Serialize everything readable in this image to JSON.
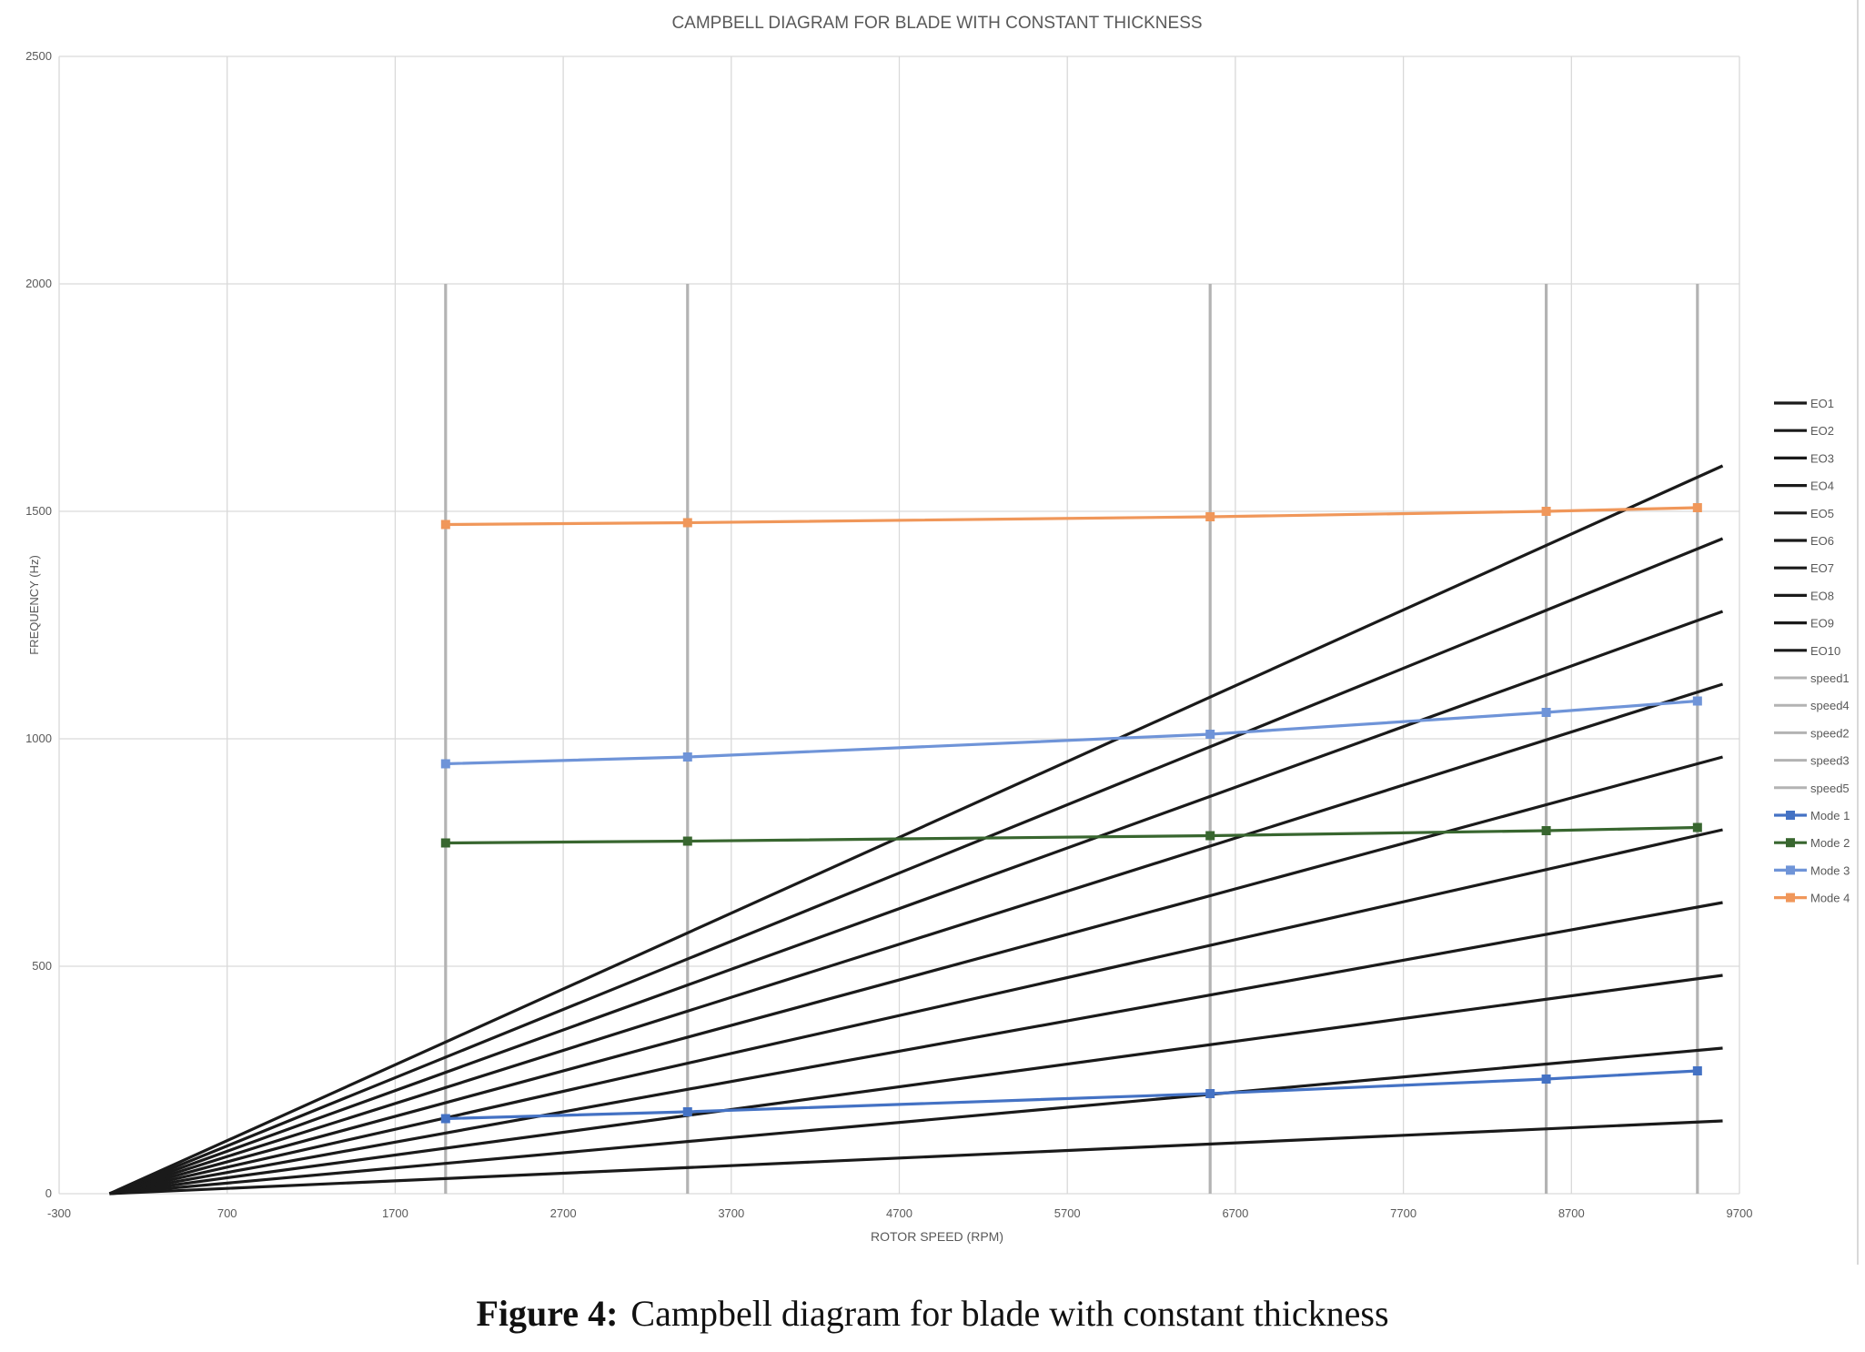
{
  "caption": {
    "label": "Figure 4:",
    "text": "Campbell diagram for blade with constant thickness"
  },
  "chart_data": {
    "type": "line",
    "title": "CAMPBELL DIAGRAM FOR BLADE WITH CONSTANT THICKNESS",
    "xlabel": "ROTOR SPEED (RPM)",
    "ylabel": "FREQUENCY (Hz)",
    "xlim": [
      -300,
      9700
    ],
    "ylim": [
      0,
      2500
    ],
    "x_ticks": [
      -300,
      700,
      1700,
      2700,
      3700,
      4700,
      5700,
      6700,
      7700,
      8700,
      9700
    ],
    "y_ticks": [
      0,
      500,
      1000,
      1500,
      2000,
      2500
    ],
    "grid": true,
    "legend_position": "right",
    "series": [
      {
        "name": "EO1",
        "kind": "engine-order",
        "color": "#1a1a1a",
        "x": [
          0,
          9600
        ],
        "y": [
          0,
          160
        ]
      },
      {
        "name": "EO2",
        "kind": "engine-order",
        "color": "#1a1a1a",
        "x": [
          0,
          9600
        ],
        "y": [
          0,
          320
        ]
      },
      {
        "name": "EO3",
        "kind": "engine-order",
        "color": "#1a1a1a",
        "x": [
          0,
          9600
        ],
        "y": [
          0,
          480
        ]
      },
      {
        "name": "EO4",
        "kind": "engine-order",
        "color": "#1a1a1a",
        "x": [
          0,
          9600
        ],
        "y": [
          0,
          640
        ]
      },
      {
        "name": "EO5",
        "kind": "engine-order",
        "color": "#1a1a1a",
        "x": [
          0,
          9600
        ],
        "y": [
          0,
          800
        ]
      },
      {
        "name": "EO6",
        "kind": "engine-order",
        "color": "#1a1a1a",
        "x": [
          0,
          9600
        ],
        "y": [
          0,
          960
        ]
      },
      {
        "name": "EO7",
        "kind": "engine-order",
        "color": "#1a1a1a",
        "x": [
          0,
          9600
        ],
        "y": [
          0,
          1120
        ]
      },
      {
        "name": "EO8",
        "kind": "engine-order",
        "color": "#1a1a1a",
        "x": [
          0,
          9600
        ],
        "y": [
          0,
          1280
        ]
      },
      {
        "name": "EO9",
        "kind": "engine-order",
        "color": "#1a1a1a",
        "x": [
          0,
          9600
        ],
        "y": [
          0,
          1440
        ]
      },
      {
        "name": "EO10",
        "kind": "engine-order",
        "color": "#1a1a1a",
        "x": [
          0,
          9600
        ],
        "y": [
          0,
          1600
        ]
      },
      {
        "name": "speed1",
        "kind": "speed",
        "color": "#b3b3b3",
        "x": [
          2000,
          2000
        ],
        "y": [
          0,
          2000
        ]
      },
      {
        "name": "speed4",
        "kind": "speed",
        "color": "#b3b3b3",
        "x": [
          3440,
          3440
        ],
        "y": [
          0,
          2000
        ]
      },
      {
        "name": "speed2",
        "kind": "speed",
        "color": "#b3b3b3",
        "x": [
          6550,
          6550
        ],
        "y": [
          0,
          2000
        ]
      },
      {
        "name": "speed3",
        "kind": "speed",
        "color": "#b3b3b3",
        "x": [
          8550,
          8550
        ],
        "y": [
          0,
          2000
        ]
      },
      {
        "name": "speed5",
        "kind": "speed",
        "color": "#b3b3b3",
        "x": [
          9450,
          9450
        ],
        "y": [
          0,
          2000
        ]
      },
      {
        "name": "Mode 1",
        "kind": "mode",
        "color": "#4472c4",
        "x": [
          2000,
          3440,
          6550,
          8550,
          9450
        ],
        "y": [
          165,
          180,
          220,
          252,
          270
        ]
      },
      {
        "name": "Mode 2",
        "kind": "mode",
        "color": "#38662f",
        "x": [
          2000,
          3440,
          6550,
          8550,
          9450
        ],
        "y": [
          771,
          775,
          787,
          798,
          805
        ]
      },
      {
        "name": "Mode 3",
        "kind": "mode",
        "color": "#6f94d8",
        "x": [
          2000,
          3440,
          6550,
          8550,
          9450
        ],
        "y": [
          945,
          960,
          1010,
          1058,
          1083
        ]
      },
      {
        "name": "Mode 4",
        "kind": "mode",
        "color": "#f0975a",
        "x": [
          2000,
          3440,
          6550,
          8550,
          9450
        ],
        "y": [
          1471,
          1475,
          1488,
          1500,
          1508
        ]
      }
    ]
  }
}
